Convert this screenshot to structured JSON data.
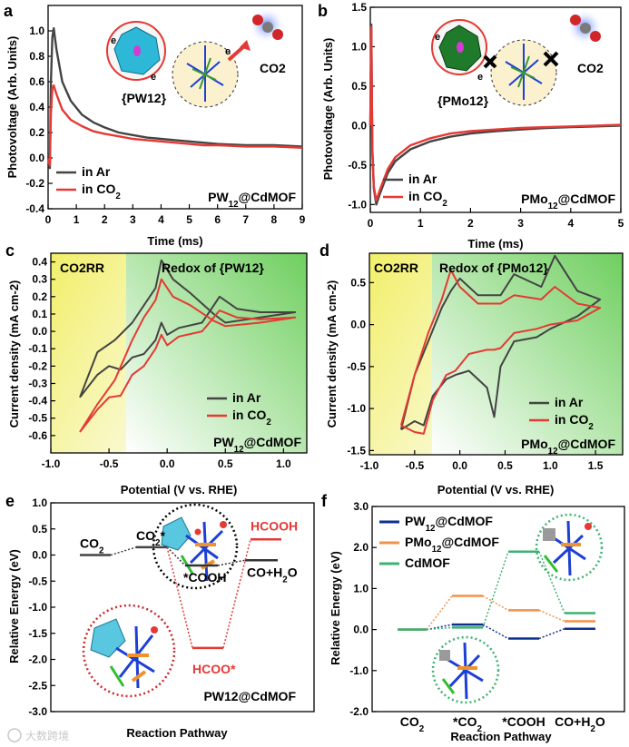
{
  "chart_data": [
    {
      "panel": "a",
      "type": "line",
      "xlabel": "Time (ms)",
      "ylabel": "Photovoltage (Arb. Units)",
      "xlim": [
        0,
        9
      ],
      "ylim": [
        -0.4,
        1.2
      ],
      "xticks": [
        "0",
        "1",
        "2",
        "3",
        "4",
        "5",
        "6",
        "7",
        "8",
        "9"
      ],
      "yticks": [
        "-0.4",
        "-0.2",
        "0.0",
        "0.2",
        "0.4",
        "0.6",
        "0.8",
        "1.0"
      ],
      "series": [
        {
          "name": "in Ar",
          "color": "#444444",
          "x": [
            0,
            0.06,
            0.1,
            0.15,
            0.2,
            0.3,
            0.5,
            0.8,
            1.2,
            1.6,
            2,
            2.5,
            3,
            3.5,
            4,
            4.5,
            5,
            5.5,
            6,
            7,
            8,
            9
          ],
          "y": [
            0,
            -0.08,
            0.6,
            0.95,
            1.02,
            0.85,
            0.6,
            0.45,
            0.34,
            0.28,
            0.24,
            0.2,
            0.18,
            0.16,
            0.15,
            0.14,
            0.13,
            0.12,
            0.11,
            0.1,
            0.1,
            0.09
          ]
        },
        {
          "name": "in CO2",
          "color": "#e53935",
          "x": [
            0,
            0.06,
            0.1,
            0.15,
            0.2,
            0.3,
            0.5,
            0.8,
            1.2,
            1.6,
            2,
            2.5,
            3,
            3.5,
            4,
            4.5,
            5,
            5.5,
            6,
            7,
            8,
            9
          ],
          "y": [
            0,
            -0.06,
            0.35,
            0.55,
            0.57,
            0.5,
            0.38,
            0.3,
            0.25,
            0.21,
            0.19,
            0.17,
            0.15,
            0.14,
            0.13,
            0.12,
            0.11,
            0.1,
            0.1,
            0.09,
            0.09,
            0.08
          ]
        }
      ],
      "legend": [
        "in Ar",
        "in CO2"
      ],
      "sample_label": "PW12@CdMOF",
      "inset_labels": [
        "e",
        "e",
        "e",
        "{PW12}",
        "CO2"
      ]
    },
    {
      "panel": "b",
      "type": "line",
      "xlabel": "Time (ms)",
      "ylabel": "Photovoltage (Arb. Units)",
      "xlim": [
        0,
        5
      ],
      "ylim": [
        -1.1,
        1.5
      ],
      "xticks": [
        "0",
        "1",
        "2",
        "3",
        "4",
        "5"
      ],
      "yticks": [
        "-1.0",
        "-0.5",
        "0.0",
        "0.5",
        "1.0",
        "1.5"
      ],
      "series": [
        {
          "name": "in Ar",
          "color": "#444444",
          "x": [
            0,
            0.02,
            0.04,
            0.07,
            0.12,
            0.2,
            0.35,
            0.5,
            0.8,
            1.2,
            1.6,
            2,
            2.5,
            3,
            3.5,
            4,
            4.5,
            5
          ],
          "y": [
            0,
            1.28,
            -0.3,
            -0.8,
            -1.0,
            -0.85,
            -0.6,
            -0.45,
            -0.3,
            -0.2,
            -0.14,
            -0.1,
            -0.07,
            -0.05,
            -0.03,
            -0.02,
            -0.01,
            0.0
          ]
        },
        {
          "name": "in CO2",
          "color": "#e53935",
          "x": [
            0,
            0.02,
            0.04,
            0.07,
            0.12,
            0.2,
            0.35,
            0.5,
            0.8,
            1.2,
            1.6,
            2,
            2.5,
            3,
            3.5,
            4,
            4.5,
            5
          ],
          "y": [
            0,
            1.25,
            -0.3,
            -0.78,
            -0.95,
            -0.8,
            -0.55,
            -0.4,
            -0.25,
            -0.16,
            -0.1,
            -0.07,
            -0.05,
            -0.03,
            -0.02,
            -0.01,
            0.0,
            0.01
          ]
        }
      ],
      "legend": [
        "in Ar",
        "in CO2"
      ],
      "sample_label": "PMo12@CdMOF",
      "inset_labels": [
        "e",
        "e",
        "{PMo12}",
        "CO2"
      ]
    },
    {
      "panel": "c",
      "type": "line",
      "xlabel": "Potential (V vs. RHE)",
      "ylabel": "Current density (mA cm-2)",
      "xlim": [
        -1.0,
        1.2
      ],
      "ylim": [
        -0.7,
        0.45
      ],
      "xticks": [
        "-1.0",
        "-0.5",
        "0.0",
        "0.5",
        "1.0"
      ],
      "yticks": [
        "-0.6",
        "-0.5",
        "-0.4",
        "-0.3",
        "-0.2",
        "-0.1",
        "0.0",
        "0.1",
        "0.2",
        "0.3",
        "0.4"
      ],
      "series": [
        {
          "name": "in Ar",
          "color": "#444444",
          "x": [
            -0.75,
            -0.6,
            -0.5,
            -0.4,
            -0.3,
            -0.2,
            -0.1,
            -0.05,
            0.0,
            0.1,
            0.3,
            0.4,
            0.45,
            0.6,
            0.8,
            1.1,
            0.8,
            0.5,
            0.4,
            0.2,
            0.05,
            -0.05,
            -0.1,
            -0.15,
            -0.2,
            -0.3,
            -0.45,
            -0.6,
            -0.75
          ],
          "y": [
            -0.38,
            -0.25,
            -0.2,
            -0.22,
            -0.15,
            -0.13,
            -0.05,
            0.05,
            -0.02,
            0.02,
            0.05,
            0.15,
            0.2,
            0.13,
            0.11,
            0.11,
            0.08,
            0.05,
            0.1,
            0.22,
            0.3,
            0.41,
            0.25,
            0.2,
            0.15,
            0.05,
            -0.05,
            -0.12,
            -0.38
          ]
        },
        {
          "name": "in CO2",
          "color": "#e53935",
          "x": [
            -0.75,
            -0.6,
            -0.5,
            -0.4,
            -0.3,
            -0.2,
            -0.1,
            -0.05,
            0.0,
            0.1,
            0.3,
            0.4,
            0.45,
            0.6,
            0.8,
            1.1,
            0.8,
            0.5,
            0.4,
            0.2,
            0.05,
            -0.05,
            -0.1,
            -0.15,
            -0.2,
            -0.3,
            -0.45,
            -0.6,
            -0.75
          ],
          "y": [
            -0.58,
            -0.45,
            -0.38,
            -0.37,
            -0.25,
            -0.2,
            -0.1,
            -0.02,
            -0.08,
            -0.03,
            0.0,
            0.08,
            0.12,
            0.08,
            0.07,
            0.08,
            0.05,
            0.03,
            0.06,
            0.15,
            0.2,
            0.3,
            0.18,
            0.13,
            0.08,
            -0.05,
            -0.28,
            -0.42,
            -0.58
          ]
        }
      ],
      "legend": [
        "in Ar",
        "in CO2"
      ],
      "region_labels": [
        "CO2RR",
        "Redox of {PW12}"
      ],
      "sample_label": "PW12@CdMOF"
    },
    {
      "panel": "d",
      "type": "line",
      "xlabel": "Potential (V vs. RHE)",
      "ylabel": "Current density (mA cm-2)",
      "xlim": [
        -1.0,
        1.8
      ],
      "ylim": [
        -1.55,
        0.85
      ],
      "xticks": [
        "-1.0",
        "-0.5",
        "0.0",
        "0.5",
        "1.0",
        "1.5"
      ],
      "yticks": [
        "-1.5",
        "-1.0",
        "-0.5",
        "0.0",
        "0.5"
      ],
      "series": [
        {
          "name": "in Ar",
          "color": "#444444",
          "x": [
            -0.65,
            -0.5,
            -0.4,
            -0.3,
            -0.15,
            -0.05,
            0.1,
            0.3,
            0.38,
            0.45,
            0.6,
            0.85,
            1.0,
            1.3,
            1.55,
            1.3,
            1.05,
            0.9,
            0.6,
            0.45,
            0.2,
            0.0,
            -0.1,
            -0.2,
            -0.35,
            -0.5,
            -0.65
          ],
          "y": [
            -1.25,
            -1.15,
            -1.2,
            -0.85,
            -0.65,
            -0.6,
            -0.55,
            -0.75,
            -1.1,
            -0.5,
            -0.2,
            -0.15,
            -0.05,
            0.1,
            0.3,
            0.4,
            0.82,
            0.45,
            0.6,
            0.35,
            0.35,
            0.55,
            0.4,
            0.2,
            -0.2,
            -0.6,
            -1.25
          ]
        },
        {
          "name": "in CO2",
          "color": "#e53935",
          "x": [
            -0.65,
            -0.5,
            -0.4,
            -0.3,
            -0.15,
            -0.05,
            0.1,
            0.3,
            0.38,
            0.45,
            0.6,
            0.85,
            1.0,
            1.3,
            1.55,
            1.3,
            1.05,
            0.9,
            0.6,
            0.45,
            0.2,
            0.0,
            -0.1,
            -0.2,
            -0.35,
            -0.5,
            -0.65
          ],
          "y": [
            -1.2,
            -1.28,
            -1.3,
            -0.9,
            -0.6,
            -0.55,
            -0.35,
            -0.3,
            -0.3,
            -0.28,
            -0.1,
            -0.05,
            0.0,
            0.05,
            0.2,
            0.25,
            0.45,
            0.3,
            0.35,
            0.25,
            0.25,
            0.45,
            0.65,
            0.3,
            -0.1,
            -0.6,
            -1.2
          ]
        }
      ],
      "legend": [
        "in Ar",
        "in CO2"
      ],
      "region_labels": [
        "CO2RR",
        "Redox of {PMo12}"
      ],
      "sample_label": "PMo12@CdMOF"
    },
    {
      "panel": "e",
      "type": "line",
      "xlabel": "Reaction Pathway",
      "ylabel": "Relative Energy (eV)",
      "ylim": [
        -3.0,
        1.0
      ],
      "yticks": [
        "-3.0",
        "-2.5",
        "-2.0",
        "-1.5",
        "-1.0",
        "-0.5",
        "0.0",
        "0.5",
        "1.0"
      ],
      "states": [
        {
          "label": "CO2",
          "energy": 0.0,
          "path": "common"
        },
        {
          "label": "CO2*",
          "energy": 0.15,
          "path": "common"
        },
        {
          "label": "*COOH",
          "energy": -0.2,
          "path": "black"
        },
        {
          "label": "CO+H2O",
          "energy": -0.1,
          "path": "black"
        },
        {
          "label": "HCOO*",
          "energy": -1.78,
          "path": "red"
        },
        {
          "label": "HCOOH",
          "energy": 0.3,
          "path": "red"
        }
      ],
      "sample_label": "PW12@CdMOF"
    },
    {
      "panel": "f",
      "type": "line",
      "xlabel": "Reaction Pathway",
      "ylabel": "Relative Energy (eV)",
      "ylim": [
        -2.0,
        3.0
      ],
      "yticks": [
        "-2.0",
        "-1.0",
        "0.0",
        "1.0",
        "2.0",
        "3.0"
      ],
      "categories": [
        "CO2",
        "*CO2",
        "*COOH",
        "CO+H2O"
      ],
      "series": [
        {
          "name": "PW12@CdMOF",
          "color": "#0d2f8f",
          "values": [
            0.0,
            0.12,
            -0.22,
            0.02
          ]
        },
        {
          "name": "PMo12@CdMOF",
          "color": "#f0924a",
          "values": [
            0.0,
            0.82,
            0.47,
            0.2
          ]
        },
        {
          "name": "CdMOF",
          "color": "#3cb371",
          "values": [
            0.0,
            0.05,
            1.9,
            0.4
          ]
        }
      ]
    }
  ],
  "watermark": "大数跨境"
}
